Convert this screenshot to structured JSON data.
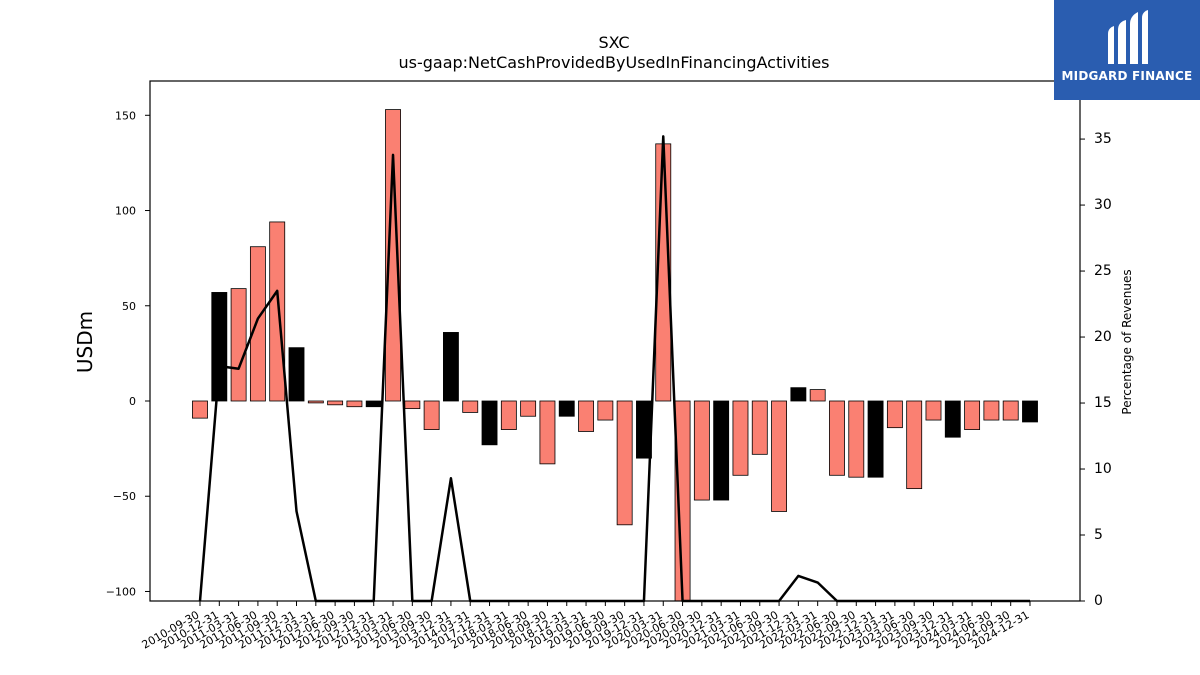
{
  "chart_data": {
    "type": "bar",
    "title": "SXC",
    "subtitle": "us-gaap:NetCashProvidedByUsedInFinancingActivities",
    "ylabel": "USDm",
    "ylabel_right": "Percentage of Revenues",
    "ylim": [
      -105,
      168
    ],
    "ylim_right": [
      0,
      39.4
    ],
    "yticks": [
      -100,
      -50,
      0,
      50,
      100,
      150
    ],
    "yticks_right": [
      0,
      5,
      10,
      15,
      20,
      25,
      30,
      35
    ],
    "colors": {
      "positive_quarter": "#fa8072",
      "year_end": "#000000",
      "line": "#000000"
    },
    "categories": [
      "2010-09-30",
      "2010-12-31",
      "2011-03-31",
      "2011-06-30",
      "2011-09-30",
      "2011-12-31",
      "2012-03-31",
      "2012-06-30",
      "2012-09-30",
      "2012-12-31",
      "2013-03-31",
      "2013-06-30",
      "2013-09-30",
      "2013-12-31",
      "2014-03-31",
      "2017-12-31",
      "2018-03-31",
      "2018-06-30",
      "2018-09-30",
      "2018-12-31",
      "2019-03-31",
      "2019-06-30",
      "2019-09-30",
      "2019-12-31",
      "2020-03-31",
      "2020-06-30",
      "2020-09-30",
      "2020-12-31",
      "2021-03-31",
      "2021-06-30",
      "2021-09-30",
      "2021-12-31",
      "2022-03-31",
      "2022-06-30",
      "2022-09-30",
      "2022-12-31",
      "2023-03-31",
      "2023-06-30",
      "2023-09-30",
      "2023-12-31",
      "2024-03-31",
      "2024-06-30",
      "2024-09-30",
      "2024-12-31"
    ],
    "series": [
      {
        "values": [
          -9,
          57,
          59,
          81,
          94,
          28,
          -1,
          -2,
          -3,
          -3,
          153,
          -4,
          -15,
          36,
          -6,
          -23,
          -15,
          -8,
          -33,
          -8,
          -16,
          -10,
          -65,
          -30,
          135,
          -107,
          -52,
          -52,
          -39,
          -28,
          -58,
          7,
          6,
          -39,
          -40,
          -40,
          -14,
          -46,
          -10,
          -19,
          -15,
          -10,
          -10,
          -11
        ]
      },
      {
        "values": [
          0,
          17.8,
          17.6,
          21.4,
          23.5,
          6.8,
          0,
          0,
          0,
          0,
          33.8,
          0,
          0,
          9.3,
          0,
          0,
          0,
          0,
          0,
          0,
          0,
          0,
          0,
          0,
          35.2,
          0,
          0,
          0,
          0,
          0,
          0,
          1.9,
          1.4,
          0,
          0,
          0,
          0,
          0,
          0,
          0,
          0,
          0,
          0,
          0
        ]
      }
    ]
  },
  "logo": {
    "text": "MIDGARD FINANCE"
  }
}
